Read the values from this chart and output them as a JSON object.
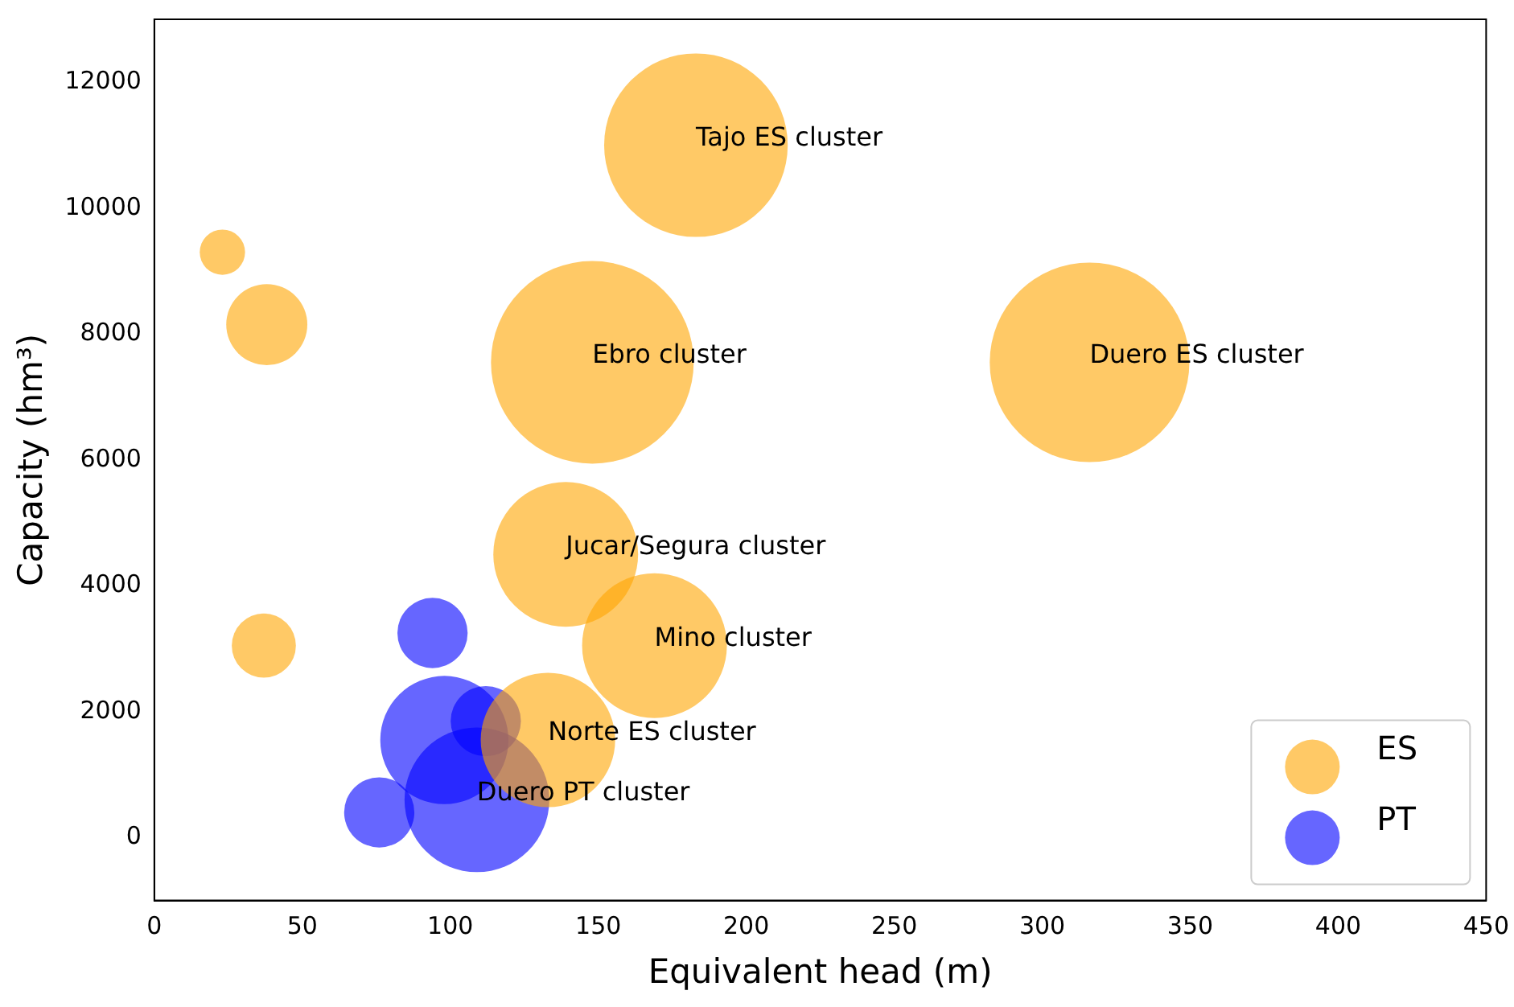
{
  "chart_data": {
    "type": "bubble",
    "xlabel": "Equivalent head (m)",
    "ylabel": "Capacity (hm³)",
    "xlim": [
      0,
      450
    ],
    "xticks": [
      0,
      50,
      100,
      150,
      200,
      250,
      300,
      350,
      400,
      450
    ],
    "ylim": [
      -1000,
      13000
    ],
    "yticks": [
      0,
      2000,
      4000,
      6000,
      8000,
      10000,
      12000
    ],
    "grid": false,
    "legend": "bottom right",
    "series": [
      {
        "name": "ES",
        "color": "#ffa500",
        "x": [
          183,
          23,
          38,
          148,
          316,
          139,
          169,
          37,
          133
        ],
        "values": [
          11000,
          9300,
          8150,
          7550,
          7550,
          4500,
          3050,
          3050,
          1550
        ],
        "sizes": [
          0.82,
          0.05,
          0.16,
          1,
          0.97,
          0.51,
          0.51,
          0.1,
          0.44
        ]
      },
      {
        "name": "PT",
        "color": "#0000ff",
        "x": [
          94,
          98,
          112,
          109,
          76
        ],
        "values": [
          3250,
          1550,
          1850,
          600,
          400
        ],
        "sizes": [
          0.12,
          0.4,
          0.12,
          0.51,
          0.12
        ]
      }
    ],
    "annotations": [
      {
        "text": "Tajo ES cluster",
        "x": 183,
        "y": 11000
      },
      {
        "text": "Ebro cluster",
        "x": 148,
        "y": 7550
      },
      {
        "text": "Duero ES cluster",
        "x": 316,
        "y": 7550
      },
      {
        "text": "Jucar/Segura cluster",
        "x": 139,
        "y": 4500
      },
      {
        "text": "Mino cluster",
        "x": 169,
        "y": 3050
      },
      {
        "text": "Norte ES cluster",
        "x": 133,
        "y": 1550
      },
      {
        "text": "Duero PT cluster",
        "x": 109,
        "y": 600
      }
    ]
  }
}
